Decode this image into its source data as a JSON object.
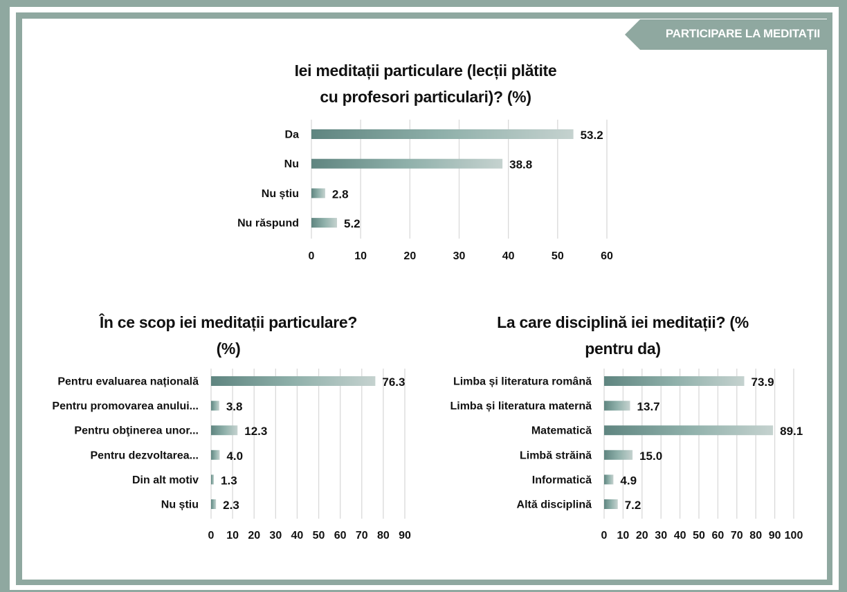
{
  "header": {
    "tag_label": "PARTICIPARE LA MEDITAȚII"
  },
  "colors": {
    "frame": "#8fa8a0",
    "bar_dark": "#5f8580",
    "bar_mid": "#8fb0aa",
    "bar_light": "#c5d2cf",
    "grid": "#d9d9d9"
  },
  "chart_data": [
    {
      "type": "bar",
      "title_line1": "Iei meditații particulare (lecții plătite",
      "title_line2": "cu profesori particulari)? (%)",
      "categories": [
        "Da",
        "Nu",
        "Nu știu",
        "Nu răspund"
      ],
      "values": [
        53.2,
        38.8,
        2.8,
        5.2
      ],
      "value_labels": [
        "53.2",
        "38.8",
        "2.8",
        "5.2"
      ],
      "xlim": [
        0,
        60
      ],
      "ticks": [
        "0",
        "10",
        "20",
        "30",
        "40",
        "50",
        "60"
      ],
      "grid": true
    },
    {
      "type": "bar",
      "title_line1": "În ce scop iei meditații particulare?",
      "title_line2": "(%)",
      "categories": [
        "Pentru evaluarea națională",
        "Pentru promovarea anului...",
        "Pentru obţinerea unor...",
        "Pentru dezvoltarea...",
        "Din alt motiv",
        "Nu știu"
      ],
      "values": [
        76.3,
        3.8,
        12.3,
        4.0,
        1.3,
        2.3
      ],
      "value_labels": [
        "76.3",
        "3.8",
        "12.3",
        "4.0",
        "1.3",
        "2.3"
      ],
      "xlim": [
        0,
        90
      ],
      "ticks": [
        "0",
        "10",
        "20",
        "30",
        "40",
        "50",
        "60",
        "70",
        "80",
        "90"
      ],
      "grid": true
    },
    {
      "type": "bar",
      "title_line1": "La care disciplină iei meditații? (%",
      "title_line2": "pentru da)",
      "categories": [
        "Limba și literatura română",
        "Limba și literatura maternă",
        "Matematică",
        "Limbă străină",
        "Informatică",
        "Altă disciplină"
      ],
      "values": [
        73.9,
        13.7,
        89.1,
        15.0,
        4.9,
        7.2
      ],
      "value_labels": [
        "73.9",
        "13.7",
        "89.1",
        "15.0",
        "4.9",
        "7.2"
      ],
      "xlim": [
        0,
        100
      ],
      "ticks": [
        "0",
        "10",
        "20",
        "30",
        "40",
        "50",
        "60",
        "70",
        "80",
        "90",
        "100"
      ],
      "grid": true
    }
  ]
}
